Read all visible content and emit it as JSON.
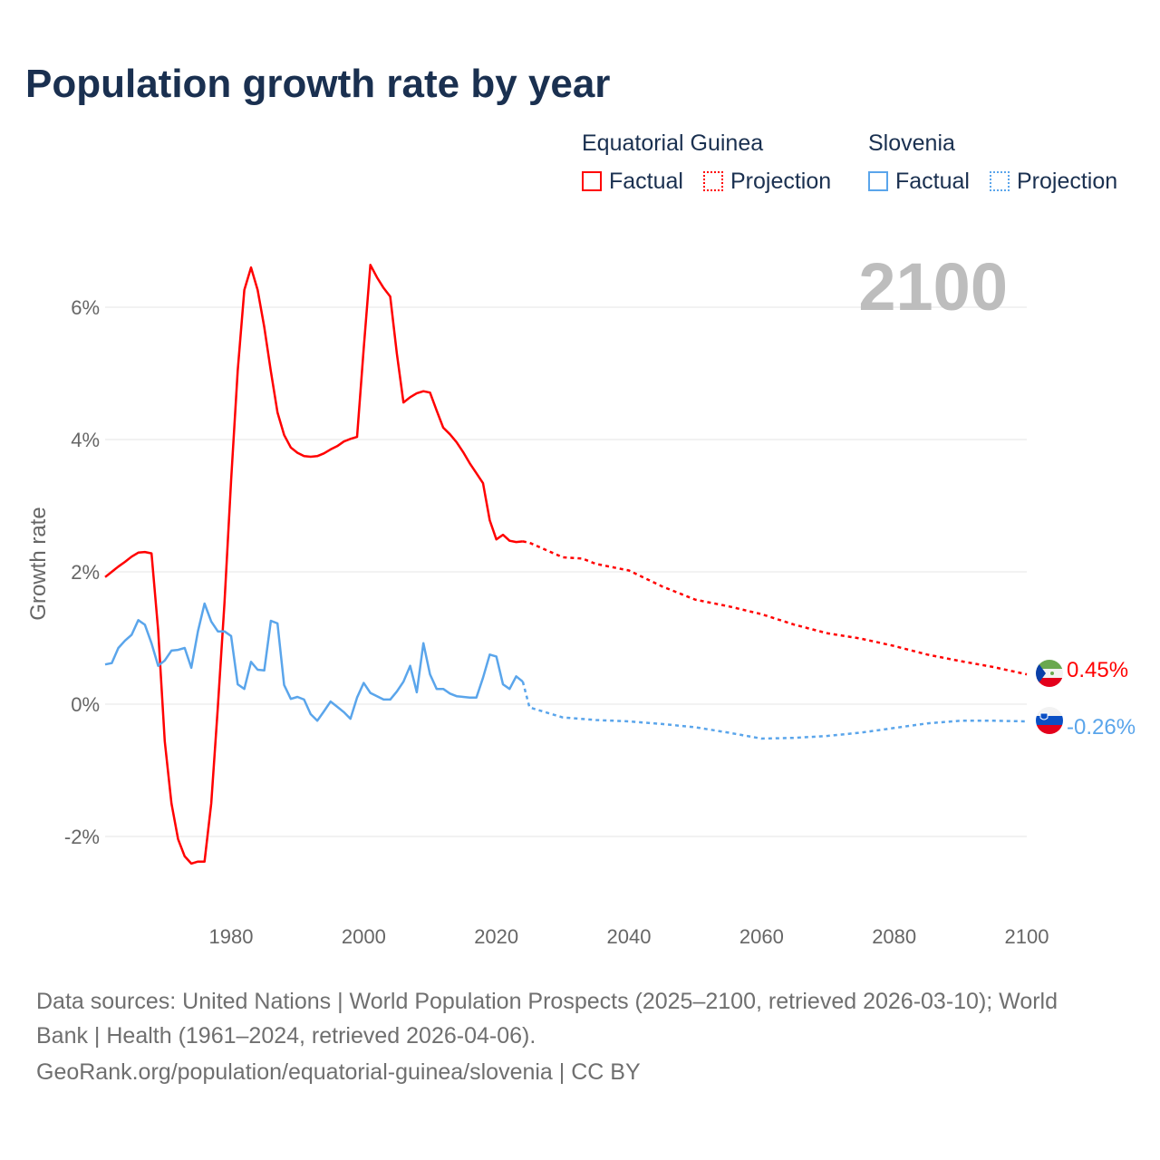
{
  "title": "Population growth rate by year",
  "legend": {
    "groups": [
      {
        "name": "Equatorial Guinea",
        "factual": "Factual",
        "projection": "Projection",
        "color": "#ff0000"
      },
      {
        "name": "Slovenia",
        "factual": "Factual",
        "projection": "Projection",
        "color": "#5aa5eb"
      }
    ]
  },
  "footer": {
    "line1": "Data sources: United Nations | World Population Prospects (2025–2100, retrieved 2026-03-10); World",
    "line2": "Bank | Health (1961–2024, retrieved 2026-04-06).",
    "line3": "GeoRank.org/population/equatorial-guinea/slovenia | CC BY"
  },
  "chart_data": {
    "type": "line",
    "title": "Population growth rate by year",
    "xlabel": "",
    "ylabel": "Growth rate",
    "year_label": "2100",
    "xlim": [
      1961,
      2100
    ],
    "ylim": [
      -3,
      7.5
    ],
    "xticks": [
      1980,
      2000,
      2020,
      2040,
      2060,
      2080,
      2100
    ],
    "yticks": [
      {
        "v": -2,
        "label": "-2%"
      },
      {
        "v": 0,
        "label": "0%"
      },
      {
        "v": 2,
        "label": "2%"
      },
      {
        "v": 4,
        "label": "4%"
      },
      {
        "v": 6,
        "label": "6%"
      }
    ],
    "grid": true,
    "legend_position": "top-right",
    "series": [
      {
        "name": "Equatorial Guinea",
        "color": "#ff0000",
        "end_label": "0.45%",
        "factual_start": 1961,
        "factual": [
          1.92,
          2.0,
          2.08,
          2.15,
          2.23,
          2.29,
          2.3,
          2.28,
          1.12,
          -0.56,
          -1.5,
          -2.04,
          -2.3,
          -2.41,
          -2.38,
          -2.38,
          -1.5,
          -0.04,
          1.53,
          3.38,
          5.04,
          6.26,
          6.6,
          6.26,
          5.7,
          5.03,
          4.41,
          4.07,
          3.88,
          3.8,
          3.75,
          3.74,
          3.75,
          3.79,
          3.85,
          3.9,
          3.97,
          4.01,
          4.04,
          5.37,
          6.64,
          6.45,
          6.29,
          6.16,
          5.3,
          4.56,
          4.64,
          4.7,
          4.73,
          4.71,
          4.44,
          4.18,
          4.08,
          3.96,
          3.81,
          3.64,
          3.49,
          3.34,
          2.78,
          2.49,
          2.56,
          2.47,
          2.45,
          2.46
        ],
        "projection": [
          [
            2024,
            2.46
          ],
          [
            2025,
            2.44
          ],
          [
            2030,
            2.22
          ],
          [
            2033,
            2.2
          ],
          [
            2035,
            2.12
          ],
          [
            2040,
            2.02
          ],
          [
            2045,
            1.78
          ],
          [
            2050,
            1.58
          ],
          [
            2055,
            1.48
          ],
          [
            2060,
            1.36
          ],
          [
            2065,
            1.2
          ],
          [
            2070,
            1.07
          ],
          [
            2075,
            0.99
          ],
          [
            2080,
            0.88
          ],
          [
            2085,
            0.75
          ],
          [
            2090,
            0.65
          ],
          [
            2095,
            0.56
          ],
          [
            2100,
            0.45
          ]
        ]
      },
      {
        "name": "Slovenia",
        "color": "#5aa5eb",
        "end_label": "-0.26%",
        "factual_start": 1961,
        "factual": [
          0.6,
          0.62,
          0.85,
          0.96,
          1.05,
          1.27,
          1.2,
          0.92,
          0.58,
          0.66,
          0.81,
          0.82,
          0.85,
          0.55,
          1.1,
          1.52,
          1.25,
          1.1,
          1.1,
          1.03,
          0.3,
          0.23,
          0.64,
          0.52,
          0.51,
          1.26,
          1.22,
          0.29,
          0.08,
          0.11,
          0.07,
          -0.15,
          -0.25,
          -0.11,
          0.04,
          -0.04,
          -0.12,
          -0.22,
          0.1,
          0.32,
          0.17,
          0.12,
          0.07,
          0.07,
          0.19,
          0.34,
          0.58,
          0.18,
          0.92,
          0.45,
          0.23,
          0.23,
          0.16,
          0.12,
          0.11,
          0.1,
          0.1,
          0.4,
          0.75,
          0.72,
          0.3,
          0.23,
          0.42,
          0.34
        ],
        "projection": [
          [
            2024,
            0.34
          ],
          [
            2025,
            -0.05
          ],
          [
            2030,
            -0.2
          ],
          [
            2035,
            -0.24
          ],
          [
            2040,
            -0.26
          ],
          [
            2045,
            -0.3
          ],
          [
            2050,
            -0.35
          ],
          [
            2055,
            -0.43
          ],
          [
            2060,
            -0.52
          ],
          [
            2065,
            -0.51
          ],
          [
            2070,
            -0.48
          ],
          [
            2075,
            -0.43
          ],
          [
            2080,
            -0.36
          ],
          [
            2085,
            -0.29
          ],
          [
            2090,
            -0.25
          ],
          [
            2095,
            -0.25
          ],
          [
            2100,
            -0.26
          ]
        ]
      }
    ]
  }
}
